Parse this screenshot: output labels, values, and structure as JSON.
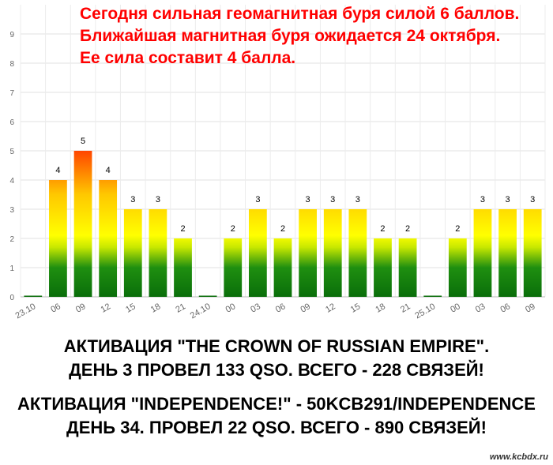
{
  "headline": {
    "line1": "Сегодня сильная геомагнитная буря силой 6 баллов.",
    "line2": "Ближайшая магнитная буря ожидается 24 октября.",
    "line3": "Ее сила составит 4 балла."
  },
  "chart_data": {
    "type": "bar",
    "title": "",
    "xlabel": "",
    "ylabel": "",
    "ylim": [
      0,
      10
    ],
    "yticks": [
      0,
      1,
      2,
      3,
      4,
      5,
      6,
      7,
      8,
      9
    ],
    "grid": true,
    "categories": [
      "23.10",
      "06",
      "09",
      "12",
      "15",
      "18",
      "21",
      "24.10",
      "00",
      "03",
      "06",
      "09",
      "12",
      "15",
      "18",
      "21",
      "25.10",
      "00",
      "03",
      "06",
      "09"
    ],
    "values": [
      0,
      4,
      5,
      4,
      3,
      3,
      2,
      0,
      2,
      3,
      2,
      3,
      3,
      3,
      2,
      2,
      0,
      2,
      3,
      3,
      3
    ],
    "bar_colors": {
      "top_high": "#ff4500",
      "mid": "#ffff00",
      "low": "#1a9a1a",
      "base": "#0a6e0a"
    }
  },
  "footer": {
    "block1": {
      "line1": "АКТИВАЦИЯ \"THE CROWN OF RUSSIAN EMPIRE\".",
      "line2": "ДЕНЬ 3 ПРОВЕЛ 133 QSO. ВСЕГО - 228 СВЯЗЕЙ!"
    },
    "block2": {
      "line1": "АКТИВАЦИЯ \"INDEPENDENCE!\" - 50KCB291/INDEPENDENCE",
      "line2": "ДЕНЬ 34. ПРОВЕЛ 22 QSO. ВСЕГО - 890 СВЯЗЕЙ!"
    }
  },
  "watermark": "www.kcbdx.ru"
}
